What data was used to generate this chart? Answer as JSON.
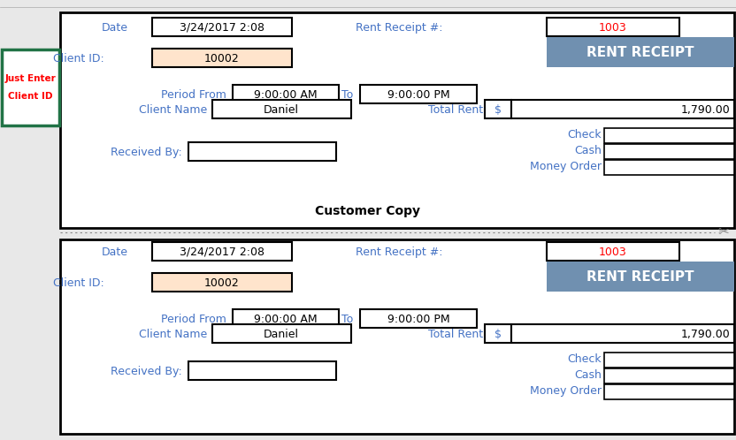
{
  "bg_color": "#E8E8E8",
  "white": "#ffffff",
  "black": "#000000",
  "red_val": "#FF0000",
  "blue_header": "#7090B0",
  "blue_text": "#4472C4",
  "peach": "#FFE4CC",
  "green_border": "#217346",
  "label_color": "#4472C4",
  "date_label": "Date",
  "date_value": "3/24/2017 2:08",
  "receipt_label": "Rent Receipt #:",
  "receipt_value": "1003",
  "header_title": "RENT RECEIPT",
  "client_id_label": "Client ID:",
  "client_id_value": "10002",
  "period_label": "Period From",
  "period_from": "9:00:00 AM",
  "to_label": "To",
  "period_to": "9:00:00 PM",
  "client_name_label": "Client Name",
  "client_name_value": "Daniel",
  "total_rent_label": "Total Rent",
  "currency_symbol": "$",
  "total_rent_value": "1,790.00",
  "received_by_label": "Received By:",
  "check_label": "Check",
  "cash_label": "Cash",
  "money_order_label": "Money Order",
  "customer_copy": "Customer Copy",
  "just_enter_line1": "Just Enter",
  "just_enter_line2": "Client ID"
}
